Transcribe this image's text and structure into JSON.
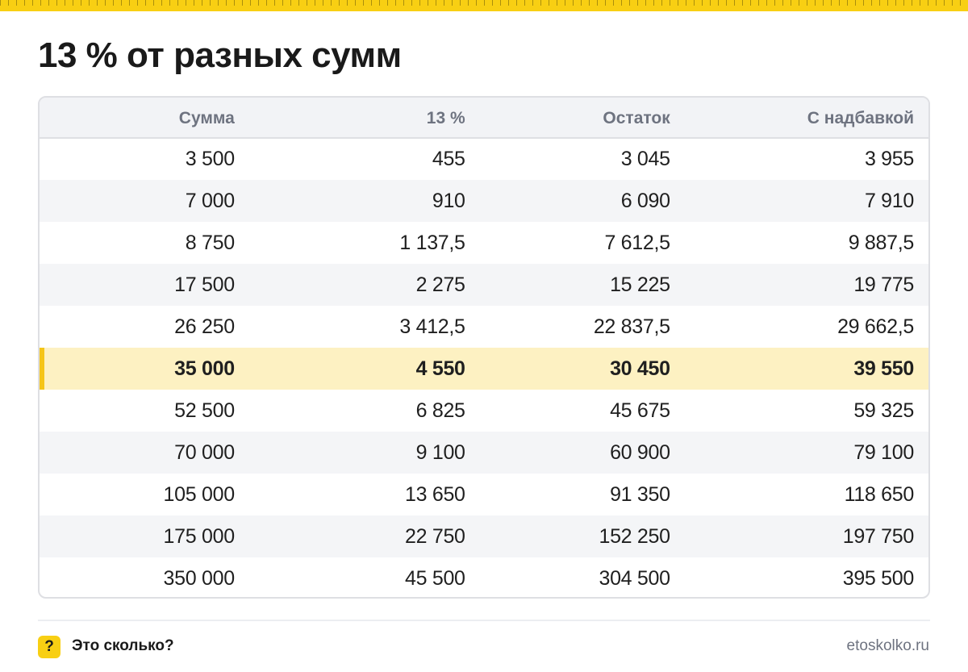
{
  "title": "13 % от разных сумм",
  "table": {
    "headers": [
      "Сумма",
      "13 %",
      "Остаток",
      "С надбавкой"
    ],
    "rows": [
      [
        "3 500",
        "455",
        "3 045",
        "3 955"
      ],
      [
        "7 000",
        "910",
        "6 090",
        "7 910"
      ],
      [
        "8 750",
        "1 137,5",
        "7 612,5",
        "9 887,5"
      ],
      [
        "17 500",
        "2 275",
        "15 225",
        "19 775"
      ],
      [
        "26 250",
        "3 412,5",
        "22 837,5",
        "29 662,5"
      ],
      [
        "35 000",
        "4 550",
        "30 450",
        "39 550"
      ],
      [
        "52 500",
        "6 825",
        "45 675",
        "59 325"
      ],
      [
        "70 000",
        "9 100",
        "60 900",
        "79 100"
      ],
      [
        "105 000",
        "13 650",
        "91 350",
        "118 650"
      ],
      [
        "175 000",
        "22 750",
        "152 250",
        "197 750"
      ],
      [
        "350 000",
        "45 500",
        "304 500",
        "395 500"
      ]
    ],
    "highlighted_row": 5
  },
  "footer": {
    "badge": "?",
    "brand": "Это сколько?",
    "site": "etoskolko.ru"
  },
  "colors": {
    "accent": "#f8cf13",
    "highlight_row": "#fdf1c2",
    "header_bg": "#f2f3f6",
    "muted_text": "#6e7380"
  }
}
